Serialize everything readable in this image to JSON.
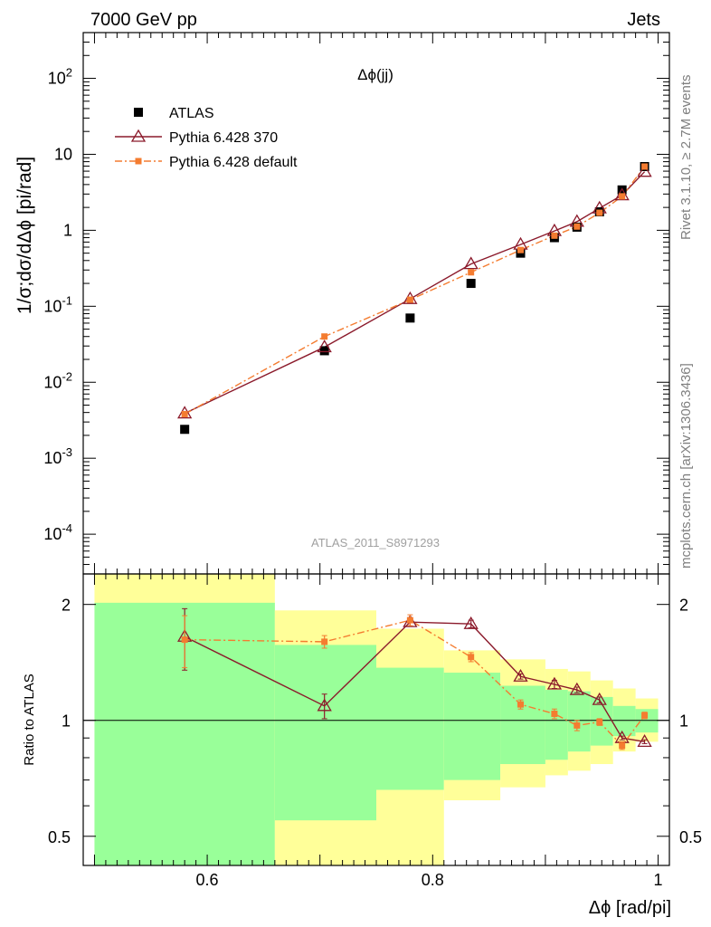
{
  "header": {
    "left": "7000 GeV pp",
    "right": "Jets"
  },
  "side_labels": {
    "top": "Rivet 3.1.10, ≥ 2.7M events",
    "bottom": "mcplots.cern.ch [arXiv:1306.3436]"
  },
  "chart_data": [
    {
      "type": "scatter",
      "title": "Δϕ(jj)",
      "watermark": "ATLAS_2011_S8971293",
      "ylabel": "1/σ;dσ/dΔϕ [pi/rad]",
      "yscale": "log",
      "ylim": [
        3e-05,
        400
      ],
      "xlim": [
        0.49,
        1.01
      ],
      "ytick_labels": [
        "10^{-4}",
        "10^{-3}",
        "10^{-2}",
        "10^{-1}",
        "1",
        "10",
        "10^{2}"
      ],
      "legend_position": "top-left",
      "series": [
        {
          "name": "ATLAS",
          "color": "#000000",
          "marker": "square",
          "x": [
            0.58,
            0.704,
            0.78,
            0.834,
            0.878,
            0.908,
            0.928,
            0.948,
            0.968,
            0.988
          ],
          "y": [
            0.0024,
            0.026,
            0.07,
            0.2,
            0.5,
            0.8,
            1.1,
            1.75,
            3.4,
            6.9
          ]
        },
        {
          "name": "Pythia 6.428 370",
          "color": "#8b1a2b",
          "marker": "triangle-open",
          "line": "solid",
          "x": [
            0.58,
            0.704,
            0.78,
            0.834,
            0.878,
            0.908,
            0.928,
            0.948,
            0.968,
            0.988
          ],
          "y": [
            0.0039,
            0.029,
            0.125,
            0.36,
            0.65,
            0.98,
            1.3,
            1.95,
            2.9,
            5.9
          ]
        },
        {
          "name": "Pythia 6.428 default",
          "color": "#f47c30",
          "marker": "square-small",
          "line": "dashdot",
          "x": [
            0.58,
            0.704,
            0.78,
            0.834,
            0.878,
            0.908,
            0.928,
            0.948,
            0.968,
            0.988
          ],
          "y": [
            0.0038,
            0.04,
            0.122,
            0.28,
            0.55,
            0.85,
            1.12,
            1.7,
            2.8,
            6.9
          ]
        }
      ]
    },
    {
      "type": "scatter",
      "ylabel": "Ratio to ATLAS",
      "yscale": "log",
      "ylim": [
        0.42,
        2.4
      ],
      "xlim": [
        0.49,
        1.01
      ],
      "xlabel": "Δϕ [rad/pi]",
      "xticks": [
        0.6,
        0.8,
        1
      ],
      "xtick_labels": [
        "0.6",
        "0.8",
        "1"
      ],
      "yticks": [
        0.5,
        1,
        2
      ],
      "ytick_labels": [
        "0.5",
        "1",
        "2"
      ],
      "reference_line": 1,
      "bands": [
        {
          "x0": 0.5,
          "x1": 0.66,
          "inner": [
            0.42,
            2.02
          ],
          "outer": [
            0.42,
            2.4
          ]
        },
        {
          "x0": 0.66,
          "x1": 0.75,
          "inner": [
            0.55,
            1.57
          ],
          "outer": [
            0.42,
            1.93
          ]
        },
        {
          "x0": 0.75,
          "x1": 0.81,
          "inner": [
            0.66,
            1.37
          ],
          "outer": [
            0.42,
            1.73
          ]
        },
        {
          "x0": 0.81,
          "x1": 0.86,
          "inner": [
            0.7,
            1.33
          ],
          "outer": [
            0.62,
            1.52
          ]
        },
        {
          "x0": 0.86,
          "x1": 0.9,
          "inner": [
            0.77,
            1.23
          ],
          "outer": [
            0.67,
            1.44
          ]
        },
        {
          "x0": 0.9,
          "x1": 0.92,
          "inner": [
            0.79,
            1.2
          ],
          "outer": [
            0.72,
            1.36
          ]
        },
        {
          "x0": 0.92,
          "x1": 0.94,
          "inner": [
            0.83,
            1.19
          ],
          "outer": [
            0.74,
            1.34
          ]
        },
        {
          "x0": 0.94,
          "x1": 0.96,
          "inner": [
            0.86,
            1.15
          ],
          "outer": [
            0.77,
            1.27
          ]
        },
        {
          "x0": 0.96,
          "x1": 0.98,
          "inner": [
            0.91,
            1.09
          ],
          "outer": [
            0.83,
            1.21
          ]
        },
        {
          "x0": 0.98,
          "x1": 1.0,
          "inner": [
            0.93,
            1.07
          ],
          "outer": [
            0.88,
            1.14
          ]
        }
      ],
      "series": [
        {
          "name": "Pythia 6.428 370",
          "color": "#8b1a2b",
          "marker": "triangle-open",
          "line": "solid",
          "x": [
            0.58,
            0.704,
            0.78,
            0.834,
            0.878,
            0.908,
            0.928,
            0.948,
            0.968,
            0.988
          ],
          "y": [
            1.65,
            1.09,
            1.8,
            1.78,
            1.3,
            1.24,
            1.2,
            1.13,
            0.9,
            0.88
          ],
          "err": [
            0.3,
            0.08,
            0.04,
            0.04,
            0.02,
            0.03,
            0.02,
            0.02,
            0.01,
            0.01
          ]
        },
        {
          "name": "Pythia 6.428 default",
          "color": "#f47c30",
          "marker": "square-small",
          "line": "dashdot",
          "x": [
            0.58,
            0.704,
            0.78,
            0.834,
            0.878,
            0.908,
            0.928,
            0.948,
            0.968,
            0.988
          ],
          "y": [
            1.62,
            1.6,
            1.82,
            1.46,
            1.1,
            1.04,
            0.97,
            0.99,
            0.86,
            1.03
          ],
          "err": [
            0.25,
            0.06,
            0.06,
            0.04,
            0.03,
            0.03,
            0.03,
            0.02,
            0.02,
            0.02
          ]
        }
      ]
    }
  ]
}
